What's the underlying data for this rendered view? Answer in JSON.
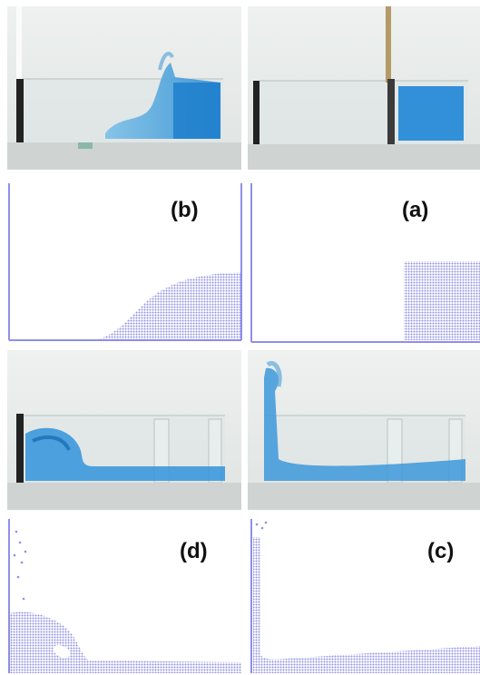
{
  "figure": {
    "panels": [
      {
        "label": "(b)",
        "kind": "simulation"
      },
      {
        "label": "(a)",
        "kind": "simulation"
      },
      {
        "label": "(d)",
        "kind": "simulation"
      },
      {
        "label": "(c)",
        "kind": "simulation"
      }
    ],
    "photos": [
      {
        "stage": "b",
        "kind": "experiment-photo"
      },
      {
        "stage": "a",
        "kind": "experiment-photo"
      },
      {
        "stage": "d",
        "kind": "experiment-photo"
      },
      {
        "stage": "c",
        "kind": "experiment-photo"
      }
    ],
    "colors": {
      "water": "#2f8fd3",
      "water_light": "#7cc0e8",
      "particles": "#8f8fe6",
      "frame": "#8f8fe6",
      "tank_bg": "#e7ebea",
      "floor": "#c9cfcf"
    }
  }
}
